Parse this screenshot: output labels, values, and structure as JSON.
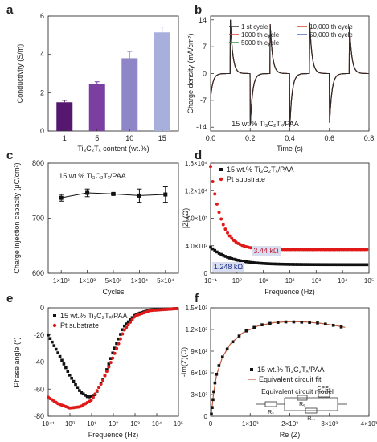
{
  "chart_data": [
    {
      "panel": "a",
      "type": "bar",
      "categories": [
        "1",
        "5",
        "10",
        "15"
      ],
      "values": [
        1.5,
        2.45,
        3.8,
        5.15
      ],
      "errors": [
        0.1,
        0.12,
        0.35,
        0.28
      ],
      "bar_colors": [
        "#55186e",
        "#7a3fa0",
        "#8f86c8",
        "#a7b0dc"
      ],
      "xlabel": "Ti₃C₂Tₓ content (wt.%)",
      "ylabel": "Conductivity (S/m)",
      "ylim": [
        0,
        6
      ],
      "yticks": [
        "0",
        "2",
        "4",
        "6"
      ]
    },
    {
      "panel": "b",
      "type": "line",
      "xlabel": "Time (s)",
      "ylabel": "Charge density (mA/cm²)",
      "xlim": [
        0,
        0.8
      ],
      "ylim": [
        -15,
        15
      ],
      "xticks": [
        "0.0",
        "0.2",
        "0.4",
        "0.6",
        "0.8"
      ],
      "yticks": [
        "-14",
        "-7",
        "0",
        "7",
        "14"
      ],
      "annotation": "15 wt.% Ti₃C₂Tₓ/PAA",
      "pulse_starts": [
        0.1,
        0.2,
        0.3,
        0.4,
        0.5,
        0.6,
        0.7,
        0.8
      ],
      "peak_positive": 14,
      "peak_negative": -14,
      "series": [
        {
          "name": "1 st cycle",
          "color": "#2b2b2b"
        },
        {
          "name": "1000 th cycle",
          "color": "#e03030"
        },
        {
          "name": "5000 th cycle",
          "color": "#2a8a3a"
        },
        {
          "name": "10,000 th cycle",
          "color": "#d03a20"
        },
        {
          "name": "50,000 th cycle",
          "color": "#3a60b0"
        }
      ]
    },
    {
      "panel": "c",
      "type": "line",
      "categories": [
        "1×10²",
        "1×10³",
        "5×10³",
        "1×10⁴",
        "5×10⁴"
      ],
      "values": [
        737,
        746,
        744,
        741,
        743
      ],
      "errors": [
        6,
        7,
        2,
        12,
        14
      ],
      "xlabel": "Cycles",
      "ylabel": "Charge injection capacity (μC/cm²)",
      "ylim": [
        600,
        800
      ],
      "yticks": [
        "600",
        "700",
        "800"
      ],
      "annotation": "15 wt.% Ti₃C₂Tₓ/PAA"
    },
    {
      "panel": "d",
      "type": "scatter",
      "xscale": "log",
      "xlim": [
        0.1,
        100000
      ],
      "ylim": [
        0,
        16000
      ],
      "xticks": [
        "10⁻¹",
        "10⁰",
        "10¹",
        "10²",
        "10³",
        "10⁴",
        "10⁵"
      ],
      "yticks": [
        "0",
        "4.0×10³",
        "8.0×10³",
        "1.2×10⁴",
        "1.6×10⁴"
      ],
      "xlabel": "Frequence (Hz)",
      "ylabel": "|Z| (Ω)",
      "series": [
        {
          "name": "15 wt.% Ti₃C₂Tₓ/PAA",
          "marker": "square",
          "color": "#111111",
          "low_freq": 3800,
          "high_freq": 1248,
          "decade_tau": 0.75
        },
        {
          "name": "Pt substrate",
          "marker": "circle",
          "color": "#e01818",
          "low_freq": 15500,
          "high_freq": 3440,
          "decade_tau": 0.4
        }
      ],
      "labels": [
        {
          "text": "3.44 kΩ",
          "color": "#c0203a",
          "bg": "#d8deef"
        },
        {
          "text": "1.248 kΩ",
          "color": "#1a2f8a",
          "bg": "#d8deef"
        }
      ]
    },
    {
      "panel": "e",
      "type": "scatter",
      "xscale": "log",
      "xlim": [
        0.1,
        100000
      ],
      "ylim": [
        -80,
        0
      ],
      "xticks": [
        "10⁻¹",
        "10⁰",
        "10¹",
        "10²",
        "10³",
        "10⁴",
        "10⁵"
      ],
      "yticks": [
        "-80",
        "-60",
        "-40",
        "-20",
        "0"
      ],
      "xlabel": "Frequence (Hz)",
      "ylabel": "Phase angle (°)",
      "series": [
        {
          "name": "15 wt.% Ti₃C₂Tₓ/PAA",
          "marker": "square",
          "color": "#111111",
          "points": [
            [
              0.1,
              -20
            ],
            [
              0.3,
              -34
            ],
            [
              1,
              -50
            ],
            [
              3,
              -62
            ],
            [
              7,
              -66
            ],
            [
              15,
              -64
            ],
            [
              40,
              -50
            ],
            [
              100,
              -32
            ],
            [
              300,
              -14
            ],
            [
              1000,
              -5
            ],
            [
              5000,
              -1.5
            ],
            [
              100000,
              -0.5
            ]
          ]
        },
        {
          "name": "Pt substrate",
          "marker": "circle",
          "color": "#e01818",
          "points": [
            [
              0.1,
              -66
            ],
            [
              0.3,
              -71
            ],
            [
              1,
              -74
            ],
            [
              3,
              -73
            ],
            [
              10,
              -68
            ],
            [
              30,
              -55
            ],
            [
              100,
              -36
            ],
            [
              300,
              -17
            ],
            [
              1000,
              -6
            ],
            [
              5000,
              -2
            ],
            [
              100000,
              -0.5
            ]
          ]
        }
      ]
    },
    {
      "panel": "f",
      "type": "scatter",
      "xlim": [
        0,
        4000
      ],
      "ylim": [
        0,
        1500
      ],
      "xticks": [
        "0",
        "1×10³",
        "2×10³",
        "3×10³",
        "4×10³"
      ],
      "yticks": [
        "0",
        "3×10²",
        "6×10²",
        "9×10²",
        "1.2×10³",
        "1.5×10³"
      ],
      "xlabel": "Re (Z)",
      "ylabel": "-Im(Z)(Ω)",
      "series": [
        {
          "name": "15 wt.% Ti₃C₂Tₓ/PAA",
          "marker": "square",
          "color": "#111111",
          "points": [
            [
              20,
              30
            ],
            [
              40,
              120
            ],
            [
              60,
              230
            ],
            [
              80,
              340
            ],
            [
              110,
              460
            ],
            [
              150,
              580
            ],
            [
              210,
              700
            ],
            [
              300,
              820
            ],
            [
              420,
              930
            ],
            [
              560,
              1030
            ],
            [
              720,
              1110
            ],
            [
              900,
              1180
            ],
            [
              1100,
              1230
            ],
            [
              1300,
              1265
            ],
            [
              1500,
              1285
            ],
            [
              1700,
              1298
            ],
            [
              1900,
              1305
            ],
            [
              2100,
              1305
            ],
            [
              2300,
              1302
            ],
            [
              2500,
              1298
            ],
            [
              2700,
              1290
            ],
            [
              2900,
              1275
            ],
            [
              3100,
              1258
            ],
            [
              3300,
              1235
            ]
          ]
        },
        {
          "name": "Equivalent circuit fit",
          "marker": "line",
          "color": "#c05a3a",
          "points": [
            [
              10,
              0
            ],
            [
              40,
              150
            ],
            [
              80,
              330
            ],
            [
              150,
              570
            ],
            [
              300,
              820
            ],
            [
              500,
              1000
            ],
            [
              800,
              1150
            ],
            [
              1200,
              1250
            ],
            [
              1600,
              1295
            ],
            [
              2000,
              1310
            ],
            [
              2400,
              1305
            ],
            [
              2800,
              1285
            ],
            [
              3200,
              1250
            ],
            [
              3400,
              1230
            ]
          ]
        }
      ],
      "circuit": {
        "title": "Equivalent circuit model",
        "labels": [
          "Rₛ",
          "Rₑ",
          "CPEₑ",
          "Rₘ"
        ]
      }
    }
  ]
}
